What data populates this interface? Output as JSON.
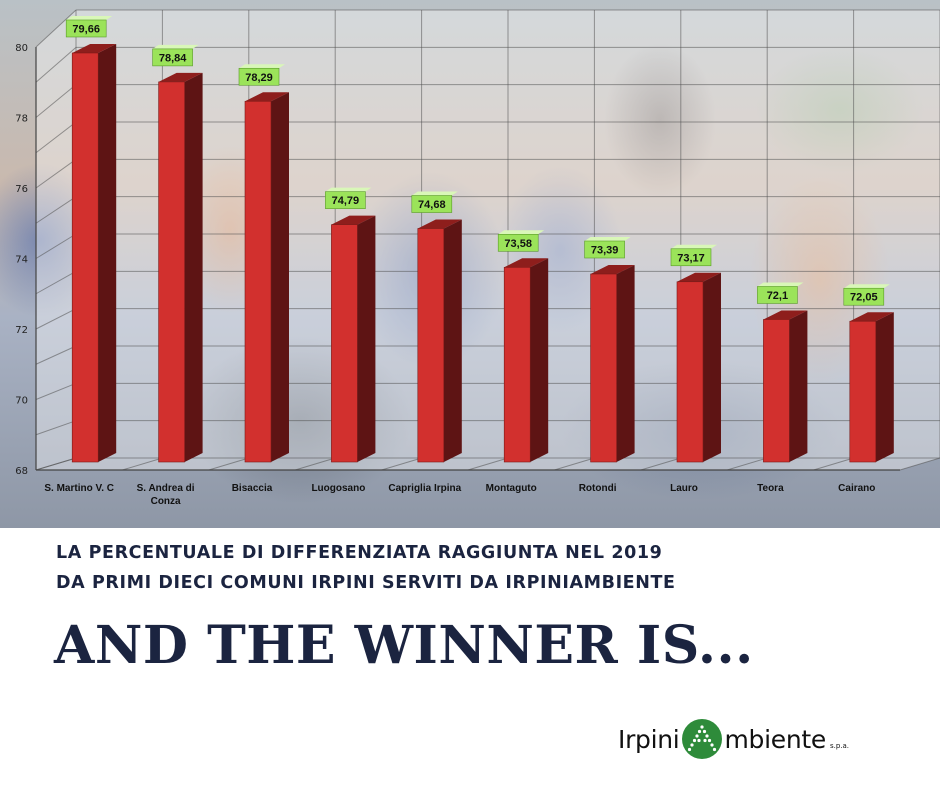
{
  "chart_data": {
    "type": "bar",
    "categories": [
      "S. Martino V. C",
      "S. Andrea di Conza",
      "Bisaccia",
      "Luogosano",
      "Capriglia Irpina",
      "Montaguto",
      "Rotondi",
      "Lauro",
      "Teora",
      "Cairano"
    ],
    "values": [
      79.66,
      78.84,
      78.29,
      74.79,
      74.68,
      73.58,
      73.39,
      73.17,
      72.1,
      72.05
    ],
    "data_labels": [
      "79,66",
      "78,84",
      "78,29",
      "74,79",
      "74,68",
      "73,58",
      "73,39",
      "73,17",
      "72,1",
      "72,05"
    ],
    "y_ticks": [
      "68",
      "70",
      "72",
      "74",
      "76",
      "78",
      "80"
    ],
    "ylim": [
      68,
      80
    ],
    "grid": true,
    "bar_color": "#d2302e",
    "bar_side_color": "#5e1414",
    "label_color": "#9be35a"
  },
  "text": {
    "subtitle_line1": "LA PERCENTUALE DI DIFFERENZIATA RAGGIUNTA NEL 2019",
    "subtitle_line2": "DA PRIMI DIECI COMUNI IRPINI SERVITI DA IRPINIAMBIENTE",
    "headline": "AND THE WINNER IS..."
  },
  "logo": {
    "text_left": "Irpini",
    "text_right": "mbiente",
    "suffix": "s.p.a.",
    "icon": "green-circle-a-logo-icon",
    "color": "#2e8b3a"
  }
}
